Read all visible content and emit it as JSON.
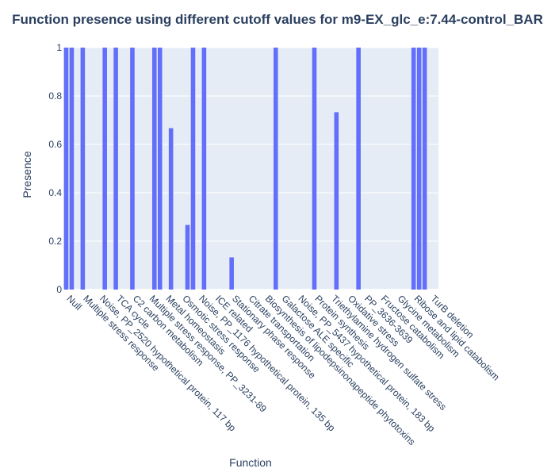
{
  "chart_data": {
    "type": "bar",
    "title": "Function presence using different cutoff values for m9-EX_glc_e:7.44-control_BAR",
    "xlabel": "Function",
    "ylabel": "Presence",
    "ylim": [
      0,
      1.0
    ],
    "yticks": [
      0,
      0.2,
      0.4,
      0.6,
      0.8,
      1
    ],
    "ytick_labels": [
      "0",
      "0.2",
      "0.4",
      "0.6",
      "0.8",
      "1"
    ],
    "grid": true,
    "bar_color": "#636efa",
    "plot_bg": "#e5ecf6",
    "x_label_rotation": 45,
    "x_positions": [
      0,
      1,
      3,
      7,
      9,
      12,
      16,
      17,
      19,
      22,
      23,
      25,
      30,
      38,
      45,
      49,
      53,
      63,
      64,
      65
    ],
    "x_range": [
      -0.5,
      67.5
    ],
    "values": [
      1,
      1,
      1,
      1,
      1,
      1,
      1,
      1,
      0.667,
      0.267,
      1,
      1,
      0.133,
      1,
      1,
      0.733,
      1,
      1,
      1,
      1
    ],
    "tick_labels": [
      "Null",
      "Multiple stress response",
      "Noise, PP_2520 hypothetical protein, 117 bp",
      "TCA cycle",
      "C2 carbon metabolism",
      "Multiple stress response, PP_3231-89",
      "Metal homeostasis",
      "Osmotic stress response",
      "Noise, PP_1176 hypothetical protein, 135 bp",
      "ICE related",
      "Stationary phase response",
      "Citrate transportation",
      "Biosynthesis of lipodepsinonapeptide phytotoxins",
      "Galactose ALE specific",
      "Noise, PP_5437 hypothetical protein, 183 bp",
      "Protein synthesis",
      "Triethylamine hydrogen sulfate stress",
      "Oxidative stress",
      "PP_3636-3639",
      "Fructose catabolism",
      "Glycine metabolism",
      "Ribose and lipid catabolism",
      "TurB deletion"
    ],
    "tick_positions": [
      0,
      3,
      6,
      9,
      12,
      15,
      18,
      21,
      24,
      27,
      30,
      33,
      36,
      39,
      42,
      45,
      48,
      51,
      54,
      57,
      60,
      63,
      66
    ]
  }
}
